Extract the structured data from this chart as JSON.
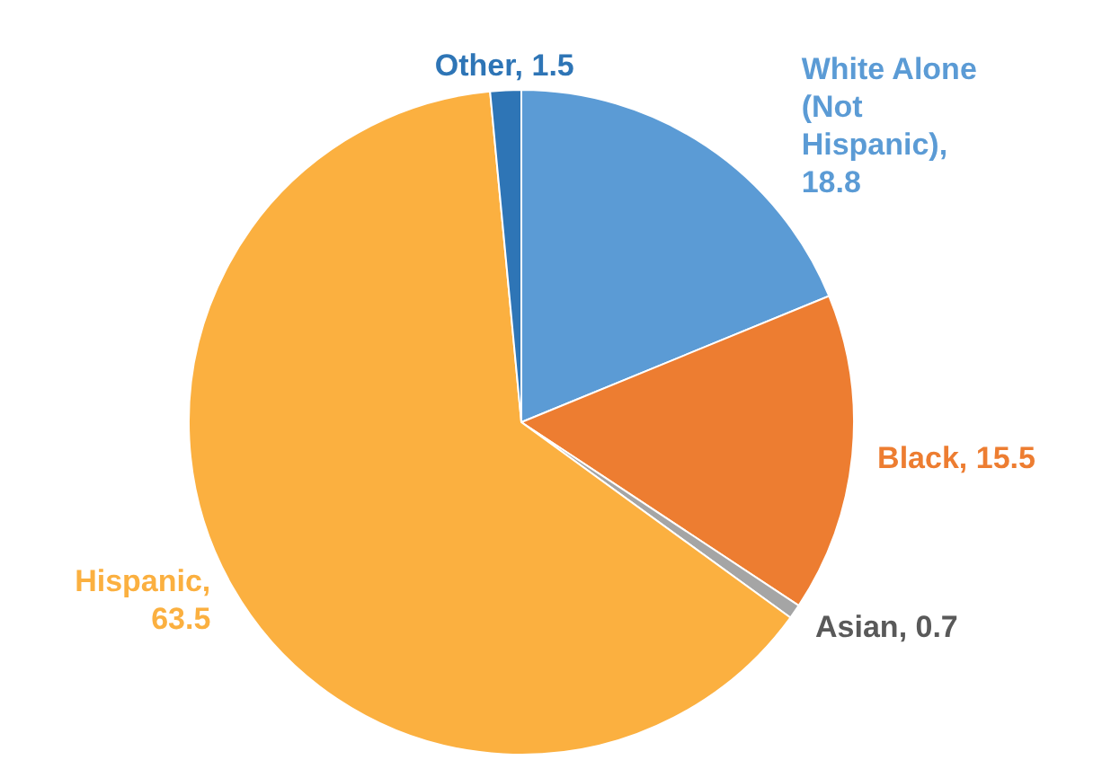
{
  "chart_data": {
    "type": "pie",
    "categories": [
      "White Alone (Not Hispanic)",
      "Black",
      "Asian",
      "Hispanic",
      "Other"
    ],
    "values": [
      18.8,
      15.5,
      0.7,
      63.5,
      1.5
    ],
    "value_labels": [
      ", 18.8",
      ", 15.5",
      ", 0.7",
      ", 63.5",
      ", 1.5"
    ],
    "colors": [
      "#5b9bd5",
      "#ed7d31",
      "#a5a5a5",
      "#fbb040",
      "#2e75b6"
    ],
    "data_labels": true,
    "legend": false
  }
}
